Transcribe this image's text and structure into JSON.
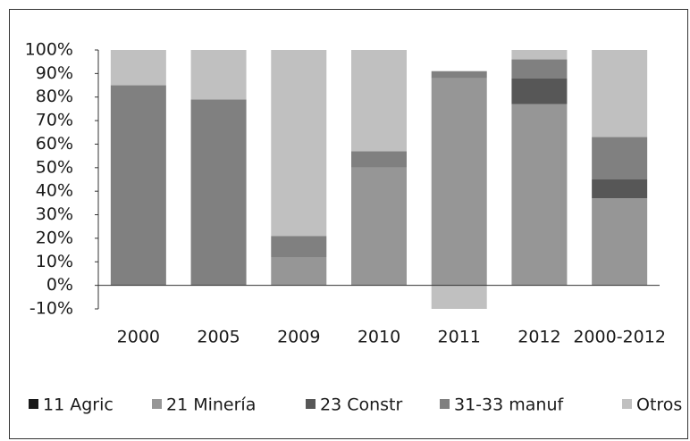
{
  "chart_data": {
    "type": "stacked_bar",
    "categories": [
      "2000",
      "2005",
      "2009",
      "2010",
      "2011",
      "2012",
      "2000-2012"
    ],
    "series": [
      {
        "name": "11 Agric",
        "color": "#1a1a1a",
        "values": [
          0,
          0,
          0,
          0,
          0,
          0,
          0
        ]
      },
      {
        "name": "21 Minería",
        "color": "#969696",
        "values": [
          0,
          0,
          12,
          50,
          88,
          77,
          37
        ]
      },
      {
        "name": "23 Constr",
        "color": "#575757",
        "values": [
          0,
          0,
          0,
          0,
          0,
          11,
          8
        ]
      },
      {
        "name": "31-33 manuf",
        "color": "#808080",
        "values": [
          85,
          79,
          9,
          7,
          3,
          8,
          18
        ]
      },
      {
        "name": "Otros",
        "color": "#c0c0c0",
        "values": [
          15,
          21,
          79,
          43,
          -10,
          4,
          37
        ]
      }
    ],
    "ylim": [
      -10,
      100
    ],
    "yticks": [
      {
        "value": -10,
        "label": "-10%"
      },
      {
        "value": 0,
        "label": "0%"
      },
      {
        "value": 10,
        "label": "10%"
      },
      {
        "value": 20,
        "label": "20%"
      },
      {
        "value": 30,
        "label": "30%"
      },
      {
        "value": 40,
        "label": "40%"
      },
      {
        "value": 50,
        "label": "50%"
      },
      {
        "value": 60,
        "label": "60%"
      },
      {
        "value": 70,
        "label": "70%"
      },
      {
        "value": 80,
        "label": "80%"
      },
      {
        "value": 90,
        "label": "90%"
      },
      {
        "value": 100,
        "label": "100%"
      }
    ],
    "legend": "bottom"
  }
}
